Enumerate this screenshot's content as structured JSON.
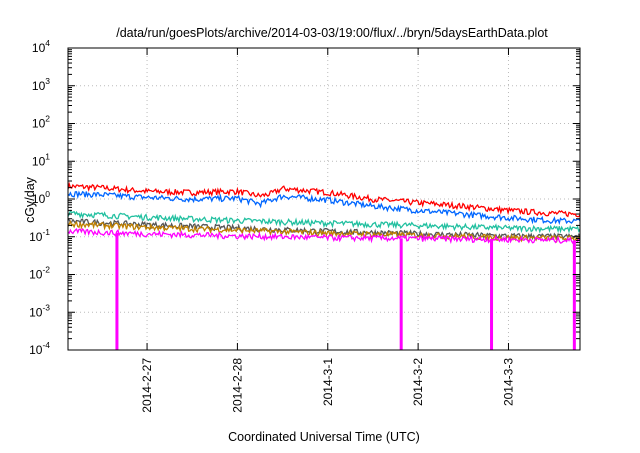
{
  "chart_data": {
    "type": "line",
    "title": "/data/run/goesPlots/archive/2014-03-03/19:00/flux/../bryn/5daysEarthData.plot",
    "xlabel": "Coordinated Universal Time (UTC)",
    "ylabel": "cGy/day",
    "yscale": "log",
    "ylim": [
      0.0001,
      10000
    ],
    "xlim": [
      "2014-02-26 03:00",
      "2014-03-03 19:00"
    ],
    "grid": true,
    "x_ticks": [
      "2014-2-27",
      "2014-2-28",
      "2014-3-1",
      "2014-3-2",
      "2014-3-3"
    ],
    "y_ticks": [
      {
        "value": 0.0001,
        "base": "10",
        "exp": "-4"
      },
      {
        "value": 0.001,
        "base": "10",
        "exp": "-3"
      },
      {
        "value": 0.01,
        "base": "10",
        "exp": "-2"
      },
      {
        "value": 0.1,
        "base": "10",
        "exp": "-1"
      },
      {
        "value": 1,
        "base": "10",
        "exp": "0"
      },
      {
        "value": 10,
        "base": "10",
        "exp": "1"
      },
      {
        "value": 100,
        "base": "10",
        "exp": "2"
      },
      {
        "value": 1000,
        "base": "10",
        "exp": "3"
      },
      {
        "value": 10000,
        "base": "10",
        "exp": "4"
      }
    ],
    "series": [
      {
        "color": "#ff0000",
        "x": [
          "2014-02-26 03:00",
          "2014-02-26 12:00",
          "2014-02-27 00:00",
          "2014-02-27 12:00",
          "2014-02-28 00:00",
          "2014-02-28 06:00",
          "2014-02-28 09:00",
          "2014-02-28 12:00",
          "2014-03-01 00:00",
          "2014-03-01 12:00",
          "2014-03-02 00:00",
          "2014-03-02 12:00",
          "2014-03-03 00:00",
          "2014-03-03 12:00",
          "2014-03-03 19:00"
        ],
        "values": [
          2.2,
          2.0,
          1.6,
          1.5,
          1.6,
          1.2,
          1.4,
          1.9,
          1.5,
          1.0,
          0.8,
          0.65,
          0.5,
          0.42,
          0.4
        ]
      },
      {
        "color": "#0066ff",
        "x": [
          "2014-02-26 03:00",
          "2014-02-26 12:00",
          "2014-02-27 00:00",
          "2014-02-27 12:00",
          "2014-02-28 00:00",
          "2014-02-28 06:00",
          "2014-02-28 09:00",
          "2014-02-28 12:00",
          "2014-03-01 00:00",
          "2014-03-01 12:00",
          "2014-03-02 00:00",
          "2014-03-02 12:00",
          "2014-03-03 00:00",
          "2014-03-03 12:00",
          "2014-03-03 19:00"
        ],
        "values": [
          1.4,
          1.3,
          1.1,
          1.0,
          1.05,
          0.75,
          0.95,
          1.2,
          0.95,
          0.65,
          0.5,
          0.4,
          0.32,
          0.27,
          0.26
        ]
      },
      {
        "color": "#22c0a0",
        "x": [
          "2014-02-26 03:00",
          "2014-02-27 00:00",
          "2014-02-28 00:00",
          "2014-03-01 00:00",
          "2014-03-02 00:00",
          "2014-03-03 00:00",
          "2014-03-03 19:00"
        ],
        "values": [
          0.42,
          0.33,
          0.27,
          0.23,
          0.2,
          0.17,
          0.16
        ]
      },
      {
        "color": "#555555",
        "x": [
          "2014-02-26 03:00",
          "2014-02-27 00:00",
          "2014-02-28 00:00",
          "2014-03-01 00:00",
          "2014-03-02 00:00",
          "2014-03-03 00:00",
          "2014-03-03 19:00"
        ],
        "values": [
          0.26,
          0.21,
          0.17,
          0.14,
          0.12,
          0.105,
          0.1
        ]
      },
      {
        "color": "#c08000",
        "x": [
          "2014-02-26 03:00",
          "2014-02-27 00:00",
          "2014-02-28 00:00",
          "2014-03-01 00:00",
          "2014-03-02 00:00",
          "2014-03-03 00:00",
          "2014-03-03 19:00"
        ],
        "values": [
          0.22,
          0.18,
          0.15,
          0.125,
          0.11,
          0.095,
          0.09
        ]
      },
      {
        "color": "#ff00ff",
        "x": [
          "2014-02-26 03:00",
          "2014-02-27 00:00",
          "2014-02-28 00:00",
          "2014-03-01 00:00",
          "2014-03-02 00:00",
          "2014-03-03 00:00",
          "2014-03-03 19:00"
        ],
        "values": [
          0.14,
          0.12,
          0.105,
          0.095,
          0.09,
          0.085,
          0.08
        ],
        "dropouts": [
          "2014-02-26 16:00",
          "2014-03-01 19:30",
          "2014-03-02 19:30",
          "2014-03-03 17:30"
        ]
      }
    ]
  }
}
